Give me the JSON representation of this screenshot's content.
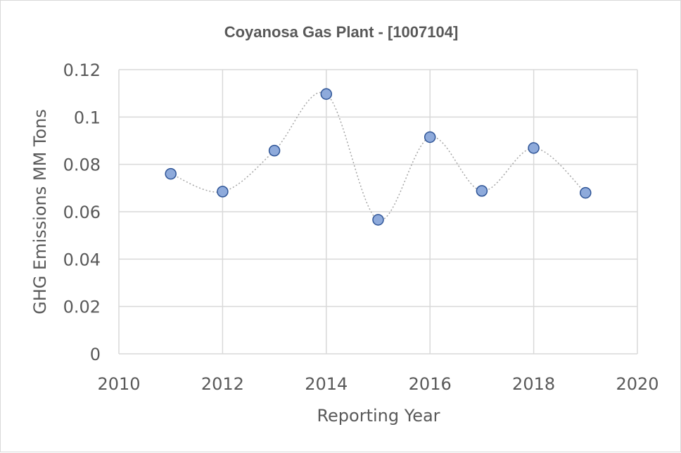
{
  "chart_data": {
    "type": "scatter",
    "title": "Coyanosa Gas Plant - [1007104]",
    "xlabel": "Reporting Year",
    "ylabel": "GHG Emissions MM Tons",
    "xlim": [
      2010,
      2020
    ],
    "ylim": [
      0,
      0.12
    ],
    "x_ticks": [
      "2010",
      "2012",
      "2014",
      "2016",
      "2018",
      "2020"
    ],
    "y_ticks": [
      "0",
      "0.02",
      "0.04",
      "0.06",
      "0.08",
      "0.1",
      "0.12"
    ],
    "grid": true,
    "line_style": "smoothed-dotted",
    "marker_color": "#8eaadb",
    "marker_edge_color": "#2f5597",
    "series": [
      {
        "x": [
          2011,
          2012,
          2013,
          2014,
          2015,
          2016,
          2017,
          2018,
          2019
        ],
        "y": [
          0.076,
          0.0685,
          0.0858,
          0.1097,
          0.0566,
          0.0915,
          0.0688,
          0.0869,
          0.068
        ]
      }
    ]
  }
}
